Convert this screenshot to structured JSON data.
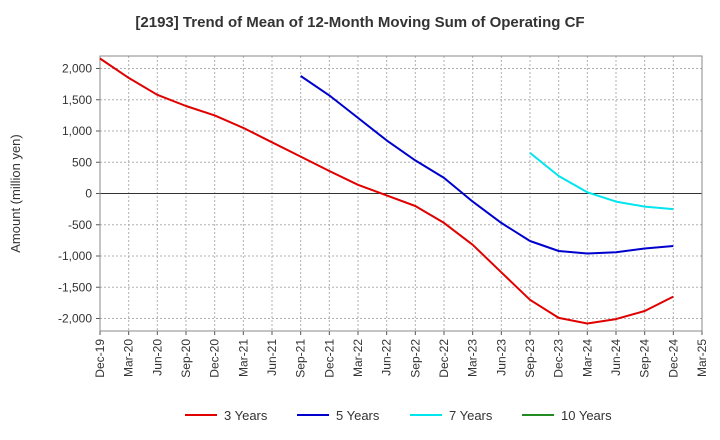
{
  "chart_data": {
    "type": "line",
    "title": "[2193]  Trend of Mean of 12-Month Moving Sum of Operating CF",
    "xlabel": "",
    "ylabel": "Amount (million yen)",
    "x_ticks": [
      "Dec-19",
      "Mar-20",
      "Jun-20",
      "Sep-20",
      "Dec-20",
      "Mar-21",
      "Jun-21",
      "Sep-21",
      "Dec-21",
      "Mar-22",
      "Jun-22",
      "Sep-22",
      "Dec-22",
      "Mar-23",
      "Jun-23",
      "Sep-23",
      "Dec-23",
      "Mar-24",
      "Jun-24",
      "Sep-24",
      "Dec-24",
      "Mar-25"
    ],
    "y_ticks": [
      2000,
      1500,
      1000,
      500,
      0,
      -500,
      -1000,
      -1500,
      -2000
    ],
    "y_tick_labels": [
      "2,000",
      "1,500",
      "1,000",
      "500",
      "0",
      "-500",
      "-1,000",
      "-1,500",
      "-2,000"
    ],
    "ylim": [
      -2200,
      2200
    ],
    "grid": true,
    "legend_position": "bottom",
    "series": [
      {
        "name": "3 Years",
        "color": "#e00000",
        "x": [
          "Dec-19",
          "Mar-20",
          "Jun-20",
          "Sep-20",
          "Dec-20",
          "Mar-21",
          "Jun-21",
          "Sep-21",
          "Dec-21",
          "Mar-22",
          "Jun-22",
          "Sep-22",
          "Dec-22",
          "Mar-23",
          "Jun-23",
          "Sep-23",
          "Dec-23",
          "Mar-24",
          "Jun-24",
          "Sep-24",
          "Dec-24"
        ],
        "values": [
          2160,
          1850,
          1580,
          1400,
          1250,
          1050,
          820,
          590,
          360,
          140,
          -30,
          -200,
          -470,
          -820,
          -1260,
          -1700,
          -1990,
          -2080,
          -2010,
          -1880,
          -1650
        ]
      },
      {
        "name": "5 Years",
        "color": "#0000cc",
        "x": [
          "Sep-21",
          "Dec-21",
          "Mar-22",
          "Jun-22",
          "Sep-22",
          "Dec-22",
          "Mar-23",
          "Jun-23",
          "Sep-23",
          "Dec-23",
          "Mar-24",
          "Jun-24",
          "Sep-24",
          "Dec-24"
        ],
        "values": [
          1880,
          1570,
          1210,
          850,
          530,
          250,
          -130,
          -470,
          -760,
          -920,
          -960,
          -940,
          -880,
          -840
        ]
      },
      {
        "name": "7 Years",
        "color": "#00e5ee",
        "x": [
          "Sep-23",
          "Dec-23",
          "Mar-24",
          "Jun-24",
          "Sep-24",
          "Dec-24"
        ],
        "values": [
          650,
          280,
          20,
          -130,
          -210,
          -250
        ]
      },
      {
        "name": "10 Years",
        "color": "#228b22",
        "x": [],
        "values": []
      }
    ]
  }
}
